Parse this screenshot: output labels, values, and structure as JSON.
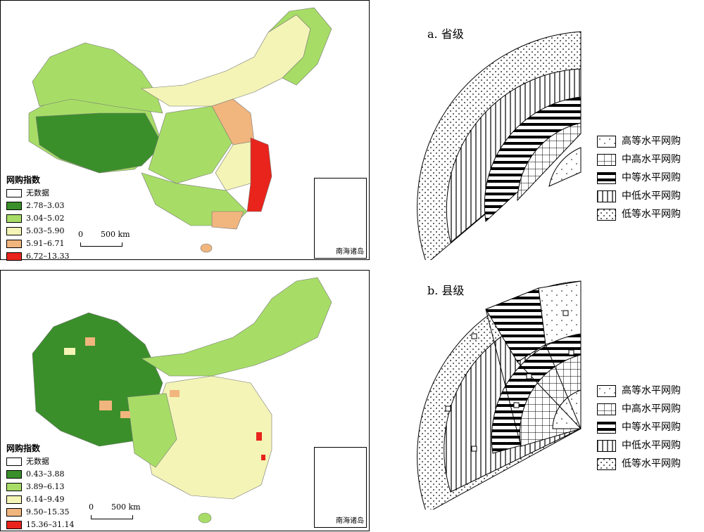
{
  "maps": {
    "top": {
      "legend_title": "网购指数",
      "legend_items": [
        {
          "label": "无数据",
          "color": "#ffffff"
        },
        {
          "label": "2.78–3.03",
          "color": "#3a8f2a"
        },
        {
          "label": "3.04–5.02",
          "color": "#a7dd66"
        },
        {
          "label": "5.03–5.90",
          "color": "#f3f4b6"
        },
        {
          "label": "5.91–6.71",
          "color": "#f1b57e"
        },
        {
          "label": "6.72–13.33",
          "color": "#e8241c"
        }
      ],
      "scale_zero": "0",
      "scale_label": "500 km",
      "inset_label": "南海诸岛"
    },
    "bottom": {
      "legend_title": "网购指数",
      "legend_items": [
        {
          "label": "无数据",
          "color": "#ffffff"
        },
        {
          "label": "0.43–3.88",
          "color": "#3a8f2a"
        },
        {
          "label": "3.89–6.13",
          "color": "#a7dd66"
        },
        {
          "label": "6.14–9.49",
          "color": "#f3f4b6"
        },
        {
          "label": "9.50–15.35",
          "color": "#f1b57e"
        },
        {
          "label": "15.36–31.14",
          "color": "#e8241c"
        }
      ],
      "scale_zero": "0",
      "scale_label": "500 km",
      "inset_label": "南海诸岛"
    }
  },
  "diagrams": {
    "a_title": "a. 省级",
    "b_title": "b. 县级",
    "legend_a": [
      "高等水平网购",
      "中高水平网购",
      "中等水平网购",
      "中低水平网购",
      "低等水平网购"
    ],
    "legend_b": [
      "高等水平网购",
      "中高水平网购",
      "中等水平网购",
      "中低水平网购",
      "低等水平网购"
    ]
  }
}
